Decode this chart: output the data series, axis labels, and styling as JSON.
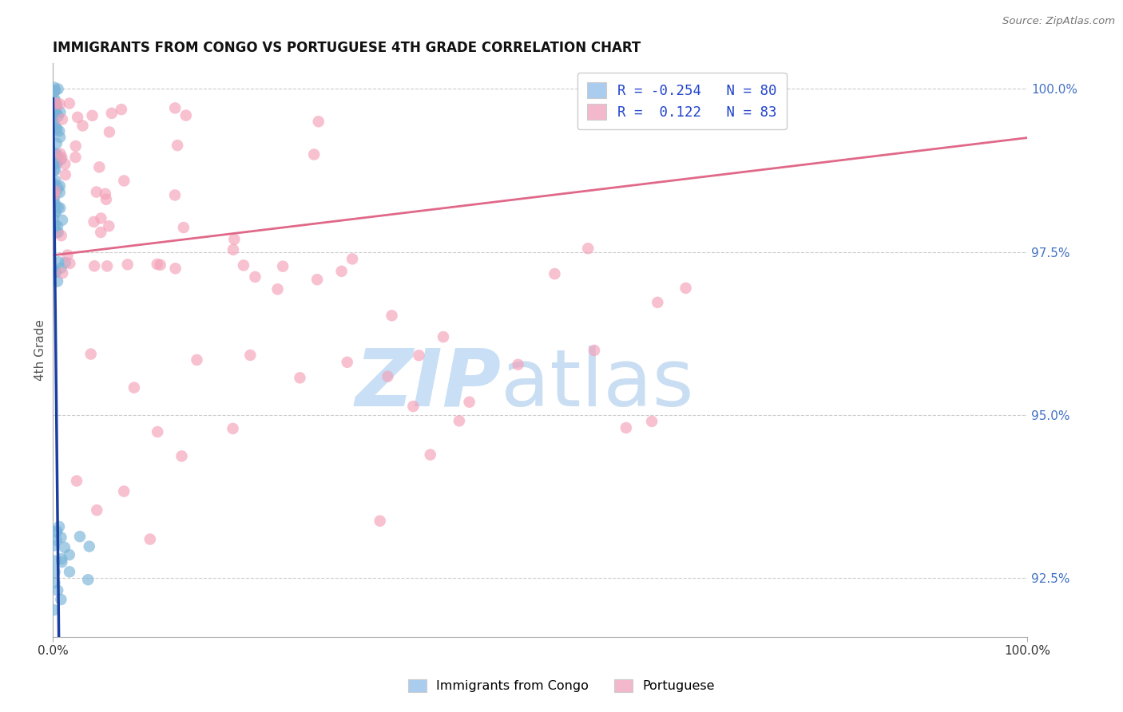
{
  "title": "IMMIGRANTS FROM CONGO VS PORTUGUESE 4TH GRADE CORRELATION CHART",
  "source": "Source: ZipAtlas.com",
  "ylabel": "4th Grade",
  "x_min": 0.0,
  "x_max": 1.0,
  "y_min": 0.916,
  "y_max": 1.004,
  "yticks": [
    0.925,
    0.95,
    0.975,
    1.0
  ],
  "ytick_labels": [
    "92.5%",
    "95.0%",
    "97.5%",
    "100.0%"
  ],
  "right_ytick_color": "#4472c4",
  "R_congo": -0.254,
  "N_congo": 80,
  "R_portuguese": 0.122,
  "N_portuguese": 83,
  "color_congo": "#7ab4d8",
  "color_portuguese": "#f4a0b8",
  "color_trendline_congo": "#1a3fa0",
  "color_trendline_portuguese": "#e06888",
  "watermark_color_zip": "#c8dff5",
  "watermark_color_atlas": "#b8d4ee",
  "legend_box_color_congo": "#aaccee",
  "legend_box_color_portuguese": "#f4b8cc",
  "trendline_congo_x0": 0.0,
  "trendline_congo_y0": 0.9985,
  "trendline_congo_slope": -14.0,
  "trendline_solid_end": 0.009,
  "trendline_dashed_end": 0.075,
  "trendline_port_x0": 0.0,
  "trendline_port_y0": 0.9745,
  "trendline_port_slope": 0.018
}
